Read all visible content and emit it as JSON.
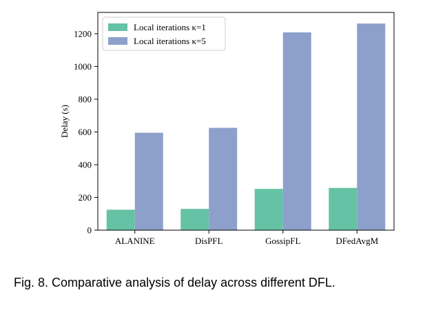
{
  "caption": "Fig. 8. Comparative analysis of delay across different DFL.",
  "chart_data": {
    "type": "bar",
    "categories": [
      "ALANINE",
      "DisPFL",
      "GossipFL",
      "DFedAvgM"
    ],
    "series": [
      {
        "name": "Local iterations κ=1",
        "color": "#66c2a5",
        "values": [
          125,
          130,
          252,
          258
        ]
      },
      {
        "name": "Local iterations κ=5",
        "color": "#8da0cb",
        "values": [
          595,
          625,
          1208,
          1262
        ]
      }
    ],
    "ylabel": "Delay (s)",
    "xlabel": "",
    "ylim": [
      0,
      1330
    ],
    "yticks": [
      0,
      200,
      400,
      600,
      800,
      1000,
      1200
    ],
    "grid": false,
    "legend": "top-left"
  }
}
